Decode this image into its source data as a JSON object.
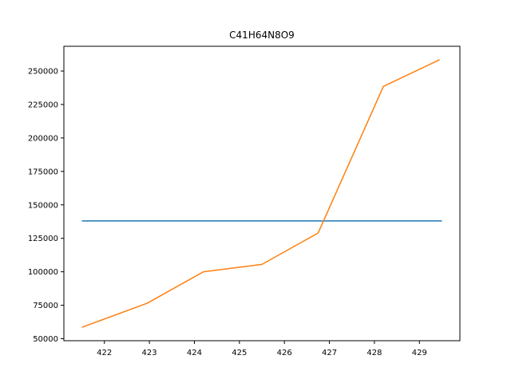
{
  "chart_data": {
    "type": "line",
    "title": "C41H64N8O9",
    "xlabel": "",
    "ylabel": "",
    "xlim": [
      421.1,
      429.9
    ],
    "ylim": [
      48500,
      268500
    ],
    "xticks": [
      422,
      423,
      424,
      425,
      426,
      427,
      428,
      429
    ],
    "xtick_labels": [
      "422",
      "423",
      "424",
      "425",
      "426",
      "427",
      "428",
      "429"
    ],
    "yticks": [
      50000,
      75000,
      100000,
      125000,
      150000,
      175000,
      200000,
      225000,
      250000
    ],
    "ytick_labels": [
      "50000",
      "75000",
      "100000",
      "125000",
      "150000",
      "175000",
      "200000",
      "225000",
      "250000"
    ],
    "grid": false,
    "series": [
      {
        "color": "#1f77b4",
        "x": [
          421.5,
          429.5
        ],
        "y": [
          138000,
          138000
        ]
      },
      {
        "color": "#ff7f0e",
        "x": [
          421.5,
          422.95,
          424.2,
          425.5,
          426.75,
          428.2,
          429.45
        ],
        "y": [
          58500,
          76500,
          100000,
          105500,
          129000,
          238500,
          258500
        ]
      }
    ]
  }
}
